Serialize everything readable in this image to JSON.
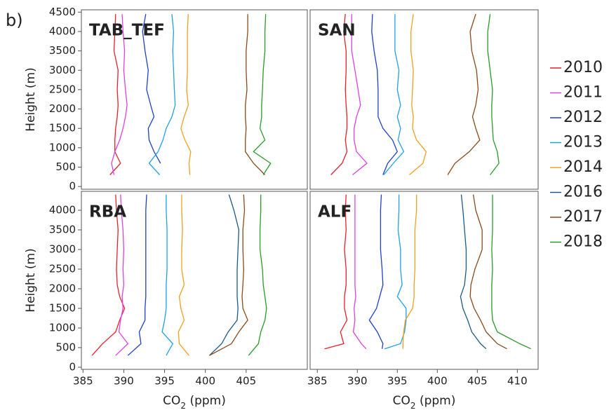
{
  "label": "b)",
  "chart_data": [
    {
      "type": "line",
      "title": "TAB_TEF",
      "ylabel": "Height (m)",
      "xlim": [
        384.8,
        412.5
      ],
      "ylim": [
        -70,
        4560
      ],
      "yticks": [
        0,
        500,
        1000,
        1500,
        2000,
        2500,
        3000,
        3500,
        4000,
        4500
      ],
      "y": [
        300,
        600,
        900,
        1200,
        1500,
        1800,
        2100,
        2500,
        3000,
        3500,
        4000,
        4450
      ],
      "series": [
        {
          "name": "2010",
          "color": "#e8202a",
          "values": [
            388.3,
            389.6,
            388.9,
            388.9,
            389.0,
            389.2,
            389.3,
            389.2,
            389.3,
            388.8,
            388.9,
            389.0
          ]
        },
        {
          "name": "2011",
          "color": "#e040e0",
          "values": [
            388.8,
            388.5,
            388.9,
            389.5,
            389.9,
            390.2,
            390.4,
            390.2,
            390.0,
            390.1,
            389.9,
            389.8
          ]
        },
        {
          "name": "2012",
          "color": "#2040c8",
          "values": [
            null,
            394.5,
            393.7,
            393.1,
            393.0,
            393.7,
            393.3,
            392.8,
            393.0,
            392.6,
            392.3,
            392.7
          ]
        },
        {
          "name": "2013",
          "color": "#20a0e8",
          "values": [
            394.4,
            393.1,
            394.2,
            394.8,
            395.2,
            395.9,
            396.3,
            396.2,
            396.1,
            396.0,
            396.1,
            395.9
          ]
        },
        {
          "name": "2014",
          "color": "#f0a020",
          "values": [
            398.1,
            398.0,
            398.2,
            397.5,
            397.0,
            397.4,
            397.9,
            397.7,
            397.8,
            397.8,
            397.8,
            397.9
          ]
        },
        {
          "name": "2017",
          "color": "#8b4a1a",
          "values": [
            407.3,
            405.9,
            404.9,
            404.9,
            405.0,
            404.9,
            404.9,
            405.1,
            405.0,
            405.0,
            405.2,
            405.2
          ]
        },
        {
          "name": "2018",
          "color": "#2a9a2a",
          "values": [
            407.1,
            408.0,
            405.9,
            407.3,
            406.7,
            406.9,
            406.9,
            407.0,
            407.1,
            407.3,
            407.3,
            407.4
          ]
        }
      ]
    },
    {
      "type": "line",
      "title": "SAN",
      "xlim": [
        384.1,
        412.6
      ],
      "ylim": [
        -70,
        4560
      ],
      "y": [
        300,
        600,
        900,
        1200,
        1500,
        1800,
        2100,
        2500,
        3000,
        3500,
        4000,
        4450
      ],
      "series": [
        {
          "name": "2010",
          "color": "#e8202a",
          "values": [
            386.7,
            388.1,
            388.7,
            388.5,
            388.7,
            388.7,
            388.6,
            388.5,
            388.6,
            388.6,
            388.3,
            388.5
          ]
        },
        {
          "name": "2011",
          "color": "#e040e0",
          "values": [
            389.4,
            391.2,
            389.9,
            389.6,
            389.6,
            389.9,
            390.4,
            390.1,
            389.7,
            389.3,
            389.3,
            389.3
          ]
        },
        {
          "name": "2012",
          "color": "#2040c8",
          "values": [
            393.2,
            393.8,
            395.0,
            394.4,
            393.2,
            392.6,
            392.6,
            392.6,
            392.5,
            392.1,
            391.8,
            391.9
          ]
        },
        {
          "name": "2013",
          "color": "#20a0e8",
          "values": [
            393.3,
            394.5,
            395.8,
            395.1,
            395.4,
            395.0,
            395.4,
            395.0,
            395.2,
            394.7,
            394.7,
            394.7
          ]
        },
        {
          "name": "2014",
          "color": "#f0a020",
          "values": [
            396.5,
            398.2,
            398.6,
            397.4,
            396.9,
            397.0,
            396.8,
            396.9,
            397.0,
            396.7,
            396.7,
            397.0
          ]
        },
        {
          "name": "2017",
          "color": "#8b4a1a",
          "values": [
            401.3,
            402.2,
            404.0,
            405.3,
            404.8,
            404.4,
            404.8,
            405.1,
            404.9,
            404.3,
            404.1,
            404.8
          ]
        },
        {
          "name": "2018",
          "color": "#2a9a2a",
          "values": [
            406.6,
            407.7,
            407.5,
            407.0,
            406.9,
            406.8,
            406.8,
            406.9,
            406.6,
            406.3,
            406.3,
            406.6
          ]
        }
      ]
    },
    {
      "type": "line",
      "title": "RBA",
      "ylabel": "Height (m)",
      "xlabel": [
        "CO",
        "2",
        " (ppm)"
      ],
      "xlim": [
        384.8,
        412.5
      ],
      "ylim": [
        -54,
        4482
      ],
      "xticks": [
        385,
        390,
        395,
        400,
        405
      ],
      "yticks": [
        0,
        500,
        1000,
        1500,
        2000,
        2500,
        3000,
        3500,
        4000
      ],
      "y": [
        300,
        600,
        900,
        1200,
        1500,
        1800,
        2100,
        2500,
        3000,
        3500,
        4000,
        4400
      ],
      "series": [
        {
          "name": "2010",
          "color": "#e8202a",
          "values": [
            386.1,
            387.4,
            389.0,
            389.5,
            390.1,
            389.5,
            389.2,
            389.1,
            389.2,
            389.3,
            389.1,
            389.0
          ]
        },
        {
          "name": "2011",
          "color": "#e040e0",
          "values": [
            389.0,
            390.5,
            389.4,
            389.6,
            389.9,
            389.8,
            390.0,
            389.9,
            390.0,
            389.9,
            389.7,
            389.6
          ]
        },
        {
          "name": "2012",
          "color": "#2040c8",
          "values": [
            390.5,
            392.1,
            391.9,
            392.6,
            392.6,
            392.7,
            392.7,
            392.7,
            392.7,
            392.7,
            392.7,
            392.8
          ]
        },
        {
          "name": "2013",
          "color": "#20a0e8",
          "values": [
            395.2,
            396.0,
            394.7,
            395.0,
            395.2,
            395.2,
            395.2,
            395.3,
            395.3,
            395.3,
            395.2,
            395.2
          ]
        },
        {
          "name": "2014",
          "color": "#f0a020",
          "values": [
            398.0,
            396.8,
            396.7,
            397.4,
            397.0,
            396.8,
            397.4,
            397.1,
            397.1,
            397.2,
            397.1,
            397.1
          ]
        },
        {
          "name": "2016",
          "color": "#1a5a8a",
          "values": [
            400.5,
            402.0,
            402.8,
            403.9,
            404.0,
            403.9,
            403.9,
            403.9,
            404.0,
            404.1,
            403.5,
            402.9
          ]
        },
        {
          "name": "2017",
          "color": "#8b4a1a",
          "values": [
            400.5,
            403.2,
            404.1,
            405.2,
            404.6,
            404.5,
            404.6,
            404.7,
            404.6,
            404.6,
            404.8,
            404.7
          ]
        },
        {
          "name": "2018",
          "color": "#2a9a2a",
          "values": [
            405.3,
            406.5,
            406.8,
            407.3,
            407.5,
            407.3,
            407.1,
            407.0,
            406.7,
            406.7,
            406.8,
            406.8
          ]
        }
      ]
    },
    {
      "type": "line",
      "title": "ALF",
      "xlabel": [
        "CO",
        "2",
        " (ppm)"
      ],
      "xlim": [
        384.1,
        412.6
      ],
      "ylim": [
        -54,
        4482
      ],
      "xticks": [
        385,
        390,
        395,
        400,
        405,
        410
      ],
      "y": [
        470,
        600,
        900,
        1200,
        1500,
        1800,
        2100,
        2500,
        3000,
        3500,
        4000,
        4400
      ],
      "series": [
        {
          "name": "2010",
          "color": "#e8202a",
          "values": [
            385.9,
            388.3,
            387.9,
            388.7,
            388.4,
            388.4,
            388.6,
            388.6,
            388.4,
            388.6,
            388.5,
            388.6
          ]
        },
        {
          "name": "2011",
          "color": "#e040e0",
          "values": [
            391.1,
            390.5,
            389.5,
            389.7,
            389.6,
            389.8,
            389.7,
            389.7,
            389.7,
            389.7,
            389.7,
            389.7
          ]
        },
        {
          "name": "2012",
          "color": "#2040c8",
          "values": [
            393.1,
            393.2,
            392.5,
            391.5,
            392.4,
            392.8,
            393.2,
            393.1,
            392.9,
            392.9,
            392.9,
            393.0
          ]
        },
        {
          "name": "2013",
          "color": "#20a0e8",
          "values": [
            393.4,
            395.4,
            395.9,
            396.1,
            396.1,
            395.0,
            395.6,
            395.4,
            395.4,
            395.1,
            395.2,
            395.2
          ]
        },
        {
          "name": "2014",
          "color": "#f0a020",
          "values": [
            395.7,
            395.7,
            395.8,
            396.0,
            396.9,
            397.1,
            397.1,
            397.2,
            397.2,
            397.2,
            397.4,
            397.4
          ]
        },
        {
          "name": "2016",
          "color": "#1a5a8a",
          "values": [
            406.1,
            405.4,
            404.3,
            403.8,
            403.2,
            402.9,
            403.4,
            403.6,
            403.6,
            403.4,
            403.2,
            403.0
          ]
        },
        {
          "name": "2017",
          "color": "#8b4a1a",
          "values": [
            408.7,
            407.5,
            406.1,
            405.4,
            404.6,
            404.1,
            404.2,
            404.7,
            405.6,
            405.6,
            404.8,
            404.5
          ]
        },
        {
          "name": "2018",
          "color": "#2a9a2a",
          "values": [
            411.7,
            410.3,
            407.5,
            406.9,
            406.8,
            406.8,
            406.8,
            406.9,
            406.8,
            406.9,
            406.9,
            406.9
          ]
        }
      ]
    }
  ]
}
